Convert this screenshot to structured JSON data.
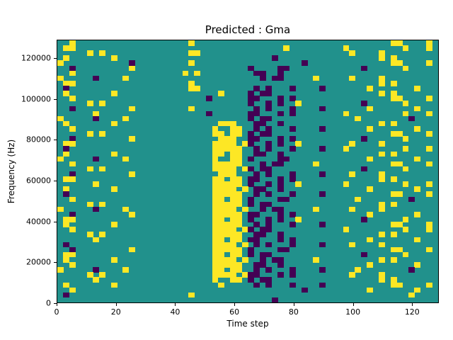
{
  "figure": {
    "title": "Predicted : Gma",
    "xlabel": "Time step",
    "ylabel": "Frequency (Hz)"
  },
  "colors": {
    "background_teal": "#21918c",
    "yellow": "#fde725",
    "dark_purple": "#440154",
    "axis": "#000000",
    "figure_bg": "#ffffff"
  },
  "chart_data": {
    "type": "heatmap",
    "title": "Predicted : Gma",
    "xlabel": "Time step",
    "ylabel": "Frequency (Hz)",
    "xlim": [
      0,
      129
    ],
    "ylim": [
      0,
      129000
    ],
    "x_ticks": [
      0,
      20,
      40,
      60,
      80,
      100,
      120
    ],
    "y_ticks": [
      0,
      20000,
      40000,
      60000,
      80000,
      100000,
      120000
    ],
    "legend": "none",
    "grid_on": false,
    "encoding": {
      "rows_order": "top_to_bottom_high_freq_first",
      "symbols": {
        ".": "teal mid value",
        "y": "yellow high value",
        "d": "dark purple low value"
      },
      "n_cols": 64,
      "n_rows": 52,
      "notes": "sparse scattered yellow/dark cells on teal; dense yellow vertical band near time steps 52-64 across low-mid frequencies; dense dark cluster near time steps 64-86"
    },
    "grid": [
      [
        "..y.............",
        "......y.........",
        "................",
        "........yy....y."
      ],
      [
        ".yy.............",
        "................",
        "......y.........",
        "y.........y...y."
      ],
      [
        ".....y.y........",
        "......yy........",
        "................",
        ".y....y........."
      ],
      [
        ".y.......y......",
        "................",
        "....d...........",
        "......y.y......."
      ],
      [
        "y...........d...",
        "......y.........",
        ".........d......",
        "........yy....y."
      ],
      [
        "..d.........y...",
        "................",
        "d....dd.........",
        "...d......y....."
      ],
      [
        "..y.............",
        ".....y.y........",
        ".dd..d..........",
        "................"
      ],
      [
        "y.....d....y....",
        "................",
        "..d.dd.....y....",
        ".y....y........."
      ],
      [
        ".yy.............",
        "......y.........",
        "................",
        "......y.y......."
      ],
      [
        ".d..............",
        "......yy........",
        ".d.d...d....d...",
        "....y.......y..."
      ],
      [
        ".y.......y......",
        "...........y....",
        "d.dd............",
        "......y.y......."
      ],
      [
        "..y.............",
        ".........d......",
        "dd...d.d........",
        "........yy....y."
      ],
      [
        ".....y.y........",
        "................",
        "d..d.d..y.......",
        "...d......y....."
      ],
      [
        "..d.........y...",
        "......y.........",
        ".d.d...d....d...",
        "....y.......y..."
      ],
      [
        "......y.........",
        ".........d......",
        "dd...d.d........",
        "y.........y...y."
      ],
      [
        "y.....d....y....",
        "................",
        "d.dd............",
        "..y........d...."
      ],
      [
        ".y.......y......",
        "...........yyy..",
        ".dd..d..........",
        "......y.y......."
      ],
      [
        "..y.............",
        "..........y..yy.",
        ".d.d...d....d...",
        "....y.......y..."
      ],
      [
        ".....y.y........",
        "..........yy.yy.",
        "d.dd............",
        "........yy....y."
      ],
      [
        "..d.........y...",
        "...........yyy..",
        "dd...d.d........",
        "...d......y....."
      ],
      [
        ".yy.............",
        "..........yyyy.y",
        "d..d.d..y.......",
        ".y....y........."
      ],
      [
        ".d..............",
        "..........yyyyy.",
        ".d.d...d....d...",
        "y.........y...y."
      ],
      [
        ".y.......y......",
        "..........yy.yy.",
        ".dd..d..........",
        "......y.y......."
      ],
      [
        "y.....d....y....",
        "..........y..yy.",
        "d....dd.........",
        "....y.......y..."
      ],
      [
        "..y.............",
        "..........yyyyy.",
        "..d.dd.....y....",
        "........yy....y."
      ],
      [
        ".....y.y........",
        "..........yyyy.y",
        "d.dd............",
        "...d......y....."
      ],
      [
        "..d.........y...",
        "...........yyy..",
        ".d.d...d....d...",
        ".y....y........."
      ],
      [
        ".yy.............",
        "..........yy.yy.",
        "dd...d.d........",
        "......y.y......."
      ],
      [
        "......y.........",
        "..........yyyyy.",
        "d..d.d..y.......",
        "y.........y...y."
      ],
      [
        ".y.......y......",
        "..........yyyy.y",
        ".dd..d..........",
        "....y.......y..."
      ],
      [
        ".d..............",
        "..........yyyyy.",
        ".d.d...d....d...",
        "........yy....y."
      ],
      [
        "..y.............",
        "..........yy.yy.",
        "d....dd.........",
        "..y........d...."
      ],
      [
        ".....y.y........",
        "..........yyyyy.",
        "d.dd............",
        "......y.y......."
      ],
      [
        "y.....d....y....",
        "..........yyyy.y",
        "..d.dd.....y....",
        ".y....y........."
      ],
      [
        "..d.........y...",
        "..........yyyyy.",
        "dd...d.d........",
        "....y.......y..."
      ],
      [
        ".yy.............",
        "..........yy.yy.",
        "d..d.d..y.......",
        "...d......y....."
      ],
      [
        ".y.......y......",
        "..........yyyyy.",
        ".d.d...d....d...",
        "........yy....y."
      ],
      [
        "..y.............",
        "..........yyyy.y",
        "d.dd............",
        "y.........y...y."
      ],
      [
        ".....y.y........",
        "..........yyyyy.",
        ".dd..d..........",
        "......y.y......."
      ],
      [
        "......y.........",
        "..........yy.yy.",
        "dd...d.d........",
        "....y.......y..."
      ],
      [
        ".d..............",
        "..........yyyy.y",
        ".d.d...d....d...",
        ".y....y........."
      ],
      [
        "..d.........y...",
        "..........yyyyy.",
        "d....dd.........",
        "........yy....y."
      ],
      [
        ".yy.............",
        "..........yy.yy.",
        "d.dd............",
        "...d......y....."
      ],
      [
        ".y.......y......",
        "..........yyyy.y",
        "..d.dd.....y....",
        "......y.y......."
      ],
      [
        "..y.............",
        "..........yyyyy.",
        ".dd..d..........",
        "....y.......y..."
      ],
      [
        "y.....d....y....",
        "..........yy.yy.",
        ".d.d...d....d...",
        "..y........d...."
      ],
      [
        ".....y.y........",
        "..........yyyy.y",
        "dd...d.d........",
        ".y....y........."
      ],
      [
        "......y.........",
        "..........y..yy.",
        "d.dd............",
        "......y.y......."
      ],
      [
        ".y.......y......",
        "...........y....",
        ".d.d...d....d...",
        "........yy....y."
      ],
      [
        "..y.............",
        "................",
        ".........d......",
        "....y.......y..."
      ],
      [
        ".d..............",
        "......y.........",
        "................",
        "...........y...."
      ],
      [
        "................",
        "................",
        "....d...........",
        "................"
      ]
    ]
  }
}
